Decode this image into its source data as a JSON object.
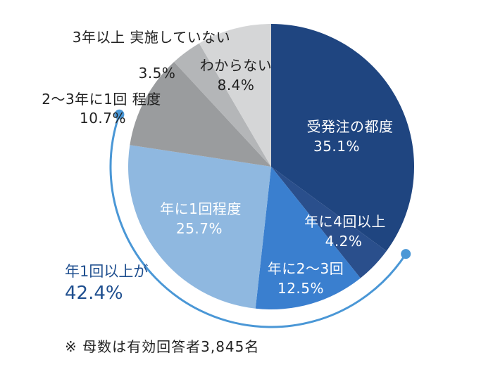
{
  "chart_data": {
    "type": "pie",
    "slices": [
      {
        "label": "受発注の都度",
        "value": 35.1,
        "display": "35.1%",
        "color": "#1f4580",
        "text_color": "#ffffff"
      },
      {
        "label": "年に4回以上",
        "value": 4.2,
        "display": "4.2%",
        "color": "#2a4f8c",
        "text_color": "#ffffff"
      },
      {
        "label": "年に2～3回",
        "value": 12.5,
        "display": "12.5%",
        "color": "#3a7fcf",
        "text_color": "#ffffff"
      },
      {
        "label": "年に1回程度",
        "value": 25.7,
        "display": "25.7%",
        "color": "#8fb8e0",
        "text_color": "#ffffff"
      },
      {
        "label": "2～3年に1回 程度",
        "value": 10.7,
        "display": "10.7%",
        "color": "#9a9c9e",
        "text_color": "#222222"
      },
      {
        "label": "3年以上 実施していない",
        "value": 3.5,
        "display": "3.5%",
        "color": "#b4b6b8",
        "text_color": "#222222"
      },
      {
        "label": "わからない",
        "value": 8.4,
        "display": "8.4%",
        "color": "#d5d6d7",
        "text_color": "#222222"
      }
    ],
    "callout": {
      "label": "年1回以上が",
      "value": "42.4%",
      "color": "#4a97d6",
      "text_color": "#1f4f8f"
    },
    "note": "※ 母数は有効回答者3,845名"
  }
}
